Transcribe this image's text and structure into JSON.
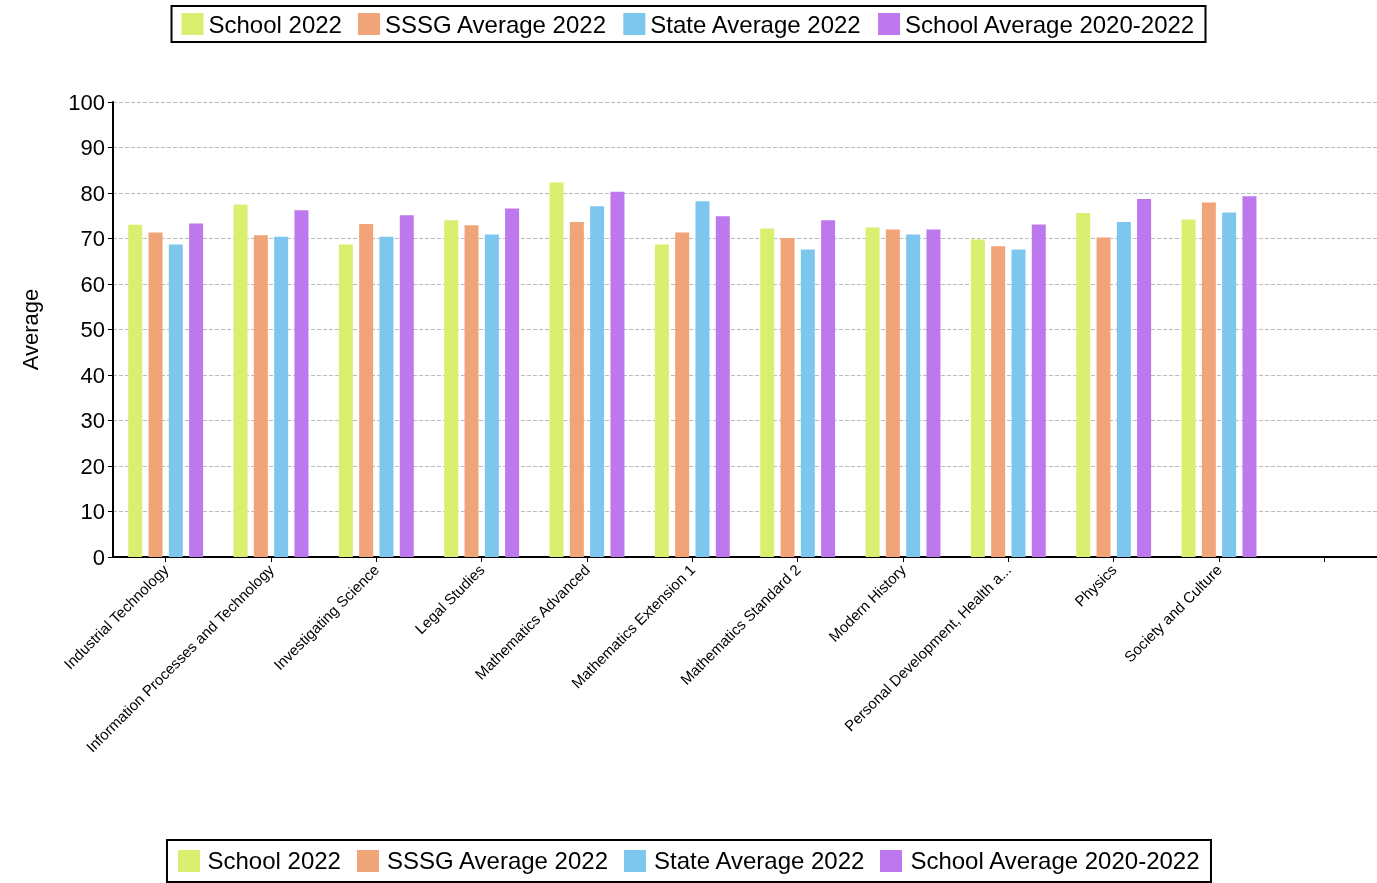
{
  "chart_data": {
    "type": "bar",
    "ylabel": "Average",
    "categories": [
      "Industrial Technology",
      "Information Processes and Technology",
      "Investigating Science",
      "Legal Studies",
      "Mathematics Advanced",
      "Mathematics Extension 1",
      "Mathematics Standard 2",
      "Modern History",
      "Personal Development, Health a...",
      "Physics",
      "Society and Culture",
      null
    ],
    "series": [
      {
        "name": "School 2022",
        "color": "#d9ef70",
        "values": [
          73.0,
          77.5,
          68.7,
          74.0,
          82.3,
          68.7,
          72.2,
          72.4,
          69.8,
          75.6,
          74.2,
          null
        ]
      },
      {
        "name": "SSSG Average 2022",
        "color": "#f0a478",
        "values": [
          71.3,
          70.7,
          73.2,
          72.9,
          73.6,
          71.3,
          70.1,
          72.0,
          68.3,
          70.2,
          77.9,
          null
        ]
      },
      {
        "name": "State Average 2022",
        "color": "#7dc7ee",
        "values": [
          68.7,
          70.4,
          70.4,
          70.9,
          77.1,
          78.2,
          67.6,
          70.9,
          67.6,
          73.6,
          75.7,
          null
        ]
      },
      {
        "name": "School Average 2020-2022",
        "color": "#bd78ee",
        "values": [
          73.3,
          76.2,
          75.1,
          76.6,
          80.3,
          74.9,
          74.0,
          72.0,
          73.1,
          78.7,
          79.3,
          null
        ]
      }
    ],
    "ylim": [
      0,
      100
    ],
    "yticks": [
      0,
      10,
      20,
      30,
      40,
      50,
      60,
      70,
      80,
      90,
      100
    ],
    "grid": "y",
    "legend": "top"
  }
}
